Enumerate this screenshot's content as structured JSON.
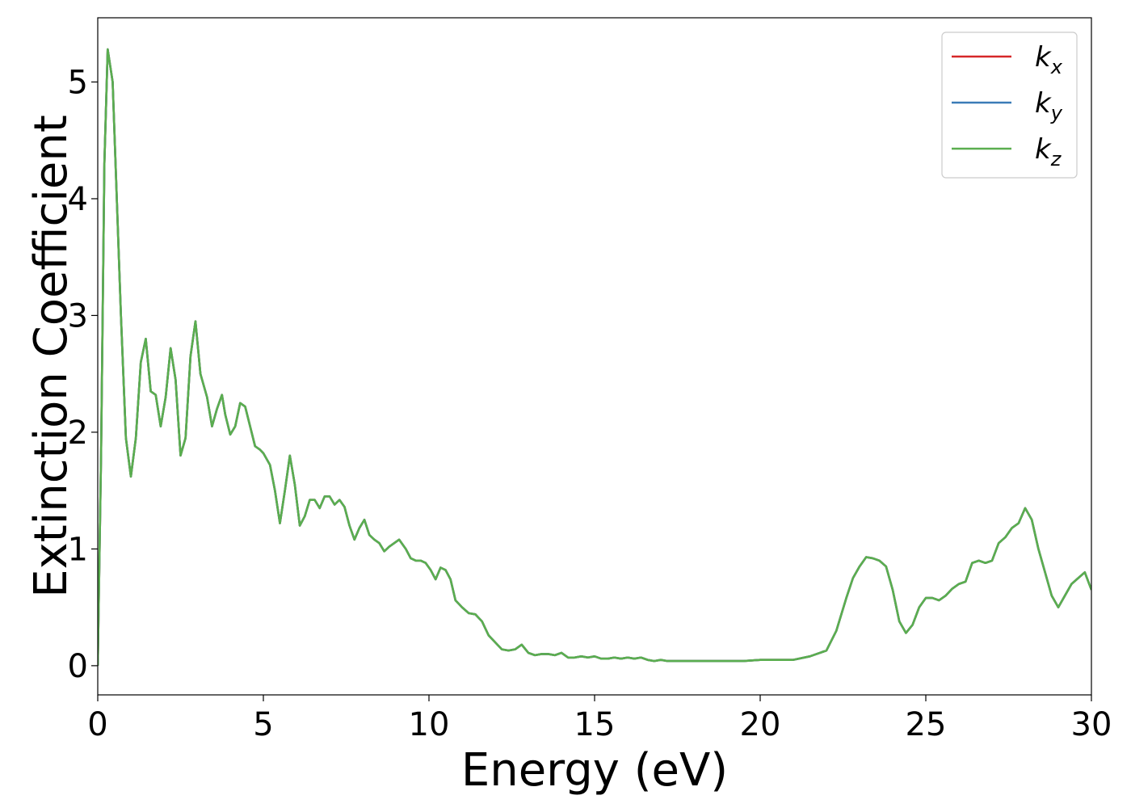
{
  "chart_data": {
    "type": "line",
    "title": "",
    "xlabel": "Energy (eV)",
    "ylabel": "Extinction Coefficient",
    "xlim": [
      0,
      30
    ],
    "ylim": [
      -0.25,
      5.55
    ],
    "xticks": [
      0,
      5,
      10,
      15,
      20,
      25,
      30
    ],
    "yticks": [
      0,
      1,
      2,
      3,
      4,
      5
    ],
    "xtick_labels": [
      "0",
      "5",
      "10",
      "15",
      "20",
      "25",
      "30"
    ],
    "ytick_labels": [
      "0",
      "1",
      "2",
      "3",
      "4",
      "5"
    ],
    "grid": false,
    "legend_position": "top-right",
    "series": [
      {
        "name": "k_x",
        "label_main": "k",
        "label_sub": "x",
        "color": "#d62728",
        "x": [
          0,
          0.1,
          0.2,
          0.3,
          0.45,
          0.55,
          0.7,
          0.85,
          1.0,
          1.15,
          1.3,
          1.45,
          1.6,
          1.75,
          1.9,
          2.05,
          2.2,
          2.35,
          2.5,
          2.65,
          2.8,
          2.95,
          3.1,
          3.3,
          3.45,
          3.6,
          3.75,
          3.85,
          4.0,
          4.15,
          4.3,
          4.45,
          4.6,
          4.75,
          4.9,
          5.0,
          5.2,
          5.35,
          5.5,
          5.65,
          5.8,
          5.95,
          6.1,
          6.25,
          6.4,
          6.55,
          6.7,
          6.85,
          7.0,
          7.15,
          7.3,
          7.45,
          7.6,
          7.75,
          7.9,
          8.05,
          8.2,
          8.35,
          8.5,
          8.65,
          8.8,
          8.95,
          9.1,
          9.3,
          9.45,
          9.6,
          9.75,
          9.9,
          10.05,
          10.2,
          10.35,
          10.5,
          10.65,
          10.8,
          11.0,
          11.2,
          11.4,
          11.6,
          11.8,
          12.0,
          12.2,
          12.4,
          12.6,
          12.8,
          13.0,
          13.2,
          13.4,
          13.6,
          13.8,
          14.0,
          14.2,
          14.4,
          14.6,
          14.8,
          15.0,
          15.2,
          15.4,
          15.6,
          15.8,
          16.0,
          16.2,
          16.4,
          16.6,
          16.8,
          17.0,
          17.2,
          17.4,
          17.6,
          17.8,
          18.0,
          18.5,
          19.0,
          19.5,
          20.0,
          20.5,
          21.0,
          21.5,
          22.0,
          22.3,
          22.6,
          22.8,
          23.0,
          23.2,
          23.4,
          23.6,
          23.8,
          24.0,
          24.2,
          24.4,
          24.6,
          24.8,
          25.0,
          25.2,
          25.4,
          25.6,
          25.8,
          26.0,
          26.2,
          26.4,
          26.6,
          26.8,
          27.0,
          27.2,
          27.4,
          27.6,
          27.8,
          28.0,
          28.2,
          28.4,
          28.6,
          28.8,
          29.0,
          29.2,
          29.4,
          29.6,
          29.8,
          30.0
        ],
        "y": [
          0,
          1.8,
          4.3,
          5.28,
          5.0,
          4.2,
          3.0,
          1.95,
          1.62,
          1.95,
          2.6,
          2.8,
          2.35,
          2.32,
          2.05,
          2.3,
          2.72,
          2.45,
          1.8,
          1.95,
          2.65,
          2.95,
          2.5,
          2.3,
          2.05,
          2.2,
          2.32,
          2.15,
          1.98,
          2.05,
          2.25,
          2.22,
          2.05,
          1.88,
          1.85,
          1.82,
          1.72,
          1.5,
          1.22,
          1.5,
          1.8,
          1.55,
          1.2,
          1.28,
          1.42,
          1.42,
          1.35,
          1.45,
          1.45,
          1.38,
          1.42,
          1.36,
          1.2,
          1.08,
          1.18,
          1.25,
          1.12,
          1.08,
          1.05,
          0.98,
          1.02,
          1.05,
          1.08,
          1.0,
          0.92,
          0.9,
          0.9,
          0.88,
          0.82,
          0.74,
          0.84,
          0.82,
          0.74,
          0.56,
          0.5,
          0.45,
          0.44,
          0.38,
          0.26,
          0.2,
          0.14,
          0.13,
          0.14,
          0.18,
          0.11,
          0.09,
          0.1,
          0.1,
          0.09,
          0.11,
          0.07,
          0.07,
          0.08,
          0.07,
          0.08,
          0.06,
          0.06,
          0.07,
          0.06,
          0.07,
          0.06,
          0.07,
          0.05,
          0.04,
          0.05,
          0.04,
          0.04,
          0.04,
          0.04,
          0.04,
          0.04,
          0.04,
          0.04,
          0.05,
          0.05,
          0.05,
          0.08,
          0.13,
          0.3,
          0.58,
          0.75,
          0.85,
          0.93,
          0.92,
          0.9,
          0.85,
          0.65,
          0.38,
          0.28,
          0.35,
          0.5,
          0.58,
          0.58,
          0.56,
          0.6,
          0.66,
          0.7,
          0.72,
          0.88,
          0.9,
          0.88,
          0.9,
          1.05,
          1.1,
          1.18,
          1.22,
          1.35,
          1.25,
          1.0,
          0.8,
          0.6,
          0.5,
          0.6,
          0.7,
          0.75,
          0.8,
          0.65
        ]
      },
      {
        "name": "k_y",
        "label_main": "k",
        "label_sub": "y",
        "color": "#3a7bb7",
        "x": [
          0,
          0.1,
          0.2,
          0.3,
          0.45,
          0.55,
          0.7,
          0.85,
          1.0,
          1.15,
          1.3,
          1.45,
          1.6,
          1.75,
          1.9,
          2.05,
          2.2,
          2.35,
          2.5,
          2.65,
          2.8,
          2.95,
          3.1,
          3.3,
          3.45,
          3.6,
          3.75,
          3.85,
          4.0,
          4.15,
          4.3,
          4.45,
          4.6,
          4.75,
          4.9,
          5.0,
          5.2,
          5.35,
          5.5,
          5.65,
          5.8,
          5.95,
          6.1,
          6.25,
          6.4,
          6.55,
          6.7,
          6.85,
          7.0,
          7.15,
          7.3,
          7.45,
          7.6,
          7.75,
          7.9,
          8.05,
          8.2,
          8.35,
          8.5,
          8.65,
          8.8,
          8.95,
          9.1,
          9.3,
          9.45,
          9.6,
          9.75,
          9.9,
          10.05,
          10.2,
          10.35,
          10.5,
          10.65,
          10.8,
          11.0,
          11.2,
          11.4,
          11.6,
          11.8,
          12.0,
          12.2,
          12.4,
          12.6,
          12.8,
          13.0,
          13.2,
          13.4,
          13.6,
          13.8,
          14.0,
          14.2,
          14.4,
          14.6,
          14.8,
          15.0,
          15.2,
          15.4,
          15.6,
          15.8,
          16.0,
          16.2,
          16.4,
          16.6,
          16.8,
          17.0,
          17.2,
          17.4,
          17.6,
          17.8,
          18.0,
          18.5,
          19.0,
          19.5,
          20.0,
          20.5,
          21.0,
          21.5,
          22.0,
          22.3,
          22.6,
          22.8,
          23.0,
          23.2,
          23.4,
          23.6,
          23.8,
          24.0,
          24.2,
          24.4,
          24.6,
          24.8,
          25.0,
          25.2,
          25.4,
          25.6,
          25.8,
          26.0,
          26.2,
          26.4,
          26.6,
          26.8,
          27.0,
          27.2,
          27.4,
          27.6,
          27.8,
          28.0,
          28.2,
          28.4,
          28.6,
          28.8,
          29.0,
          29.2,
          29.4,
          29.6,
          29.8,
          30.0
        ],
        "y": [
          0,
          1.8,
          4.3,
          5.28,
          5.0,
          4.2,
          3.0,
          1.95,
          1.62,
          1.95,
          2.6,
          2.8,
          2.35,
          2.32,
          2.05,
          2.3,
          2.72,
          2.45,
          1.8,
          1.95,
          2.65,
          2.95,
          2.5,
          2.3,
          2.05,
          2.2,
          2.32,
          2.15,
          1.98,
          2.05,
          2.25,
          2.22,
          2.05,
          1.88,
          1.85,
          1.82,
          1.72,
          1.5,
          1.22,
          1.5,
          1.8,
          1.55,
          1.2,
          1.28,
          1.42,
          1.42,
          1.35,
          1.45,
          1.45,
          1.38,
          1.42,
          1.36,
          1.2,
          1.08,
          1.18,
          1.25,
          1.12,
          1.08,
          1.05,
          0.98,
          1.02,
          1.05,
          1.08,
          1.0,
          0.92,
          0.9,
          0.9,
          0.88,
          0.82,
          0.74,
          0.84,
          0.82,
          0.74,
          0.56,
          0.5,
          0.45,
          0.44,
          0.38,
          0.26,
          0.2,
          0.14,
          0.13,
          0.14,
          0.18,
          0.11,
          0.09,
          0.1,
          0.1,
          0.09,
          0.11,
          0.07,
          0.07,
          0.08,
          0.07,
          0.08,
          0.06,
          0.06,
          0.07,
          0.06,
          0.07,
          0.06,
          0.07,
          0.05,
          0.04,
          0.05,
          0.04,
          0.04,
          0.04,
          0.04,
          0.04,
          0.04,
          0.04,
          0.04,
          0.05,
          0.05,
          0.05,
          0.08,
          0.13,
          0.3,
          0.58,
          0.75,
          0.85,
          0.93,
          0.92,
          0.9,
          0.85,
          0.65,
          0.38,
          0.28,
          0.35,
          0.5,
          0.58,
          0.58,
          0.56,
          0.6,
          0.66,
          0.7,
          0.72,
          0.88,
          0.9,
          0.88,
          0.9,
          1.05,
          1.1,
          1.18,
          1.22,
          1.35,
          1.25,
          1.0,
          0.8,
          0.6,
          0.5,
          0.6,
          0.7,
          0.75,
          0.8,
          0.65
        ]
      },
      {
        "name": "k_z",
        "label_main": "k",
        "label_sub": "z",
        "color": "#5aae4f",
        "x": [
          0,
          0.1,
          0.2,
          0.3,
          0.45,
          0.55,
          0.7,
          0.85,
          1.0,
          1.15,
          1.3,
          1.45,
          1.6,
          1.75,
          1.9,
          2.05,
          2.2,
          2.35,
          2.5,
          2.65,
          2.8,
          2.95,
          3.1,
          3.3,
          3.45,
          3.6,
          3.75,
          3.85,
          4.0,
          4.15,
          4.3,
          4.45,
          4.6,
          4.75,
          4.9,
          5.0,
          5.2,
          5.35,
          5.5,
          5.65,
          5.8,
          5.95,
          6.1,
          6.25,
          6.4,
          6.55,
          6.7,
          6.85,
          7.0,
          7.15,
          7.3,
          7.45,
          7.6,
          7.75,
          7.9,
          8.05,
          8.2,
          8.35,
          8.5,
          8.65,
          8.8,
          8.95,
          9.1,
          9.3,
          9.45,
          9.6,
          9.75,
          9.9,
          10.05,
          10.2,
          10.35,
          10.5,
          10.65,
          10.8,
          11.0,
          11.2,
          11.4,
          11.6,
          11.8,
          12.0,
          12.2,
          12.4,
          12.6,
          12.8,
          13.0,
          13.2,
          13.4,
          13.6,
          13.8,
          14.0,
          14.2,
          14.4,
          14.6,
          14.8,
          15.0,
          15.2,
          15.4,
          15.6,
          15.8,
          16.0,
          16.2,
          16.4,
          16.6,
          16.8,
          17.0,
          17.2,
          17.4,
          17.6,
          17.8,
          18.0,
          18.5,
          19.0,
          19.5,
          20.0,
          20.5,
          21.0,
          21.5,
          22.0,
          22.3,
          22.6,
          22.8,
          23.0,
          23.2,
          23.4,
          23.6,
          23.8,
          24.0,
          24.2,
          24.4,
          24.6,
          24.8,
          25.0,
          25.2,
          25.4,
          25.6,
          25.8,
          26.0,
          26.2,
          26.4,
          26.6,
          26.8,
          27.0,
          27.2,
          27.4,
          27.6,
          27.8,
          28.0,
          28.2,
          28.4,
          28.6,
          28.8,
          29.0,
          29.2,
          29.4,
          29.6,
          29.8,
          30.0
        ],
        "y": [
          0,
          1.8,
          4.3,
          5.28,
          5.0,
          4.2,
          3.0,
          1.95,
          1.62,
          1.95,
          2.6,
          2.8,
          2.35,
          2.32,
          2.05,
          2.3,
          2.72,
          2.45,
          1.8,
          1.95,
          2.65,
          2.95,
          2.5,
          2.3,
          2.05,
          2.2,
          2.32,
          2.15,
          1.98,
          2.05,
          2.25,
          2.22,
          2.05,
          1.88,
          1.85,
          1.82,
          1.72,
          1.5,
          1.22,
          1.5,
          1.8,
          1.55,
          1.2,
          1.28,
          1.42,
          1.42,
          1.35,
          1.45,
          1.45,
          1.38,
          1.42,
          1.36,
          1.2,
          1.08,
          1.18,
          1.25,
          1.12,
          1.08,
          1.05,
          0.98,
          1.02,
          1.05,
          1.08,
          1.0,
          0.92,
          0.9,
          0.9,
          0.88,
          0.82,
          0.74,
          0.84,
          0.82,
          0.74,
          0.56,
          0.5,
          0.45,
          0.44,
          0.38,
          0.26,
          0.2,
          0.14,
          0.13,
          0.14,
          0.18,
          0.11,
          0.09,
          0.1,
          0.1,
          0.09,
          0.11,
          0.07,
          0.07,
          0.08,
          0.07,
          0.08,
          0.06,
          0.06,
          0.07,
          0.06,
          0.07,
          0.06,
          0.07,
          0.05,
          0.04,
          0.05,
          0.04,
          0.04,
          0.04,
          0.04,
          0.04,
          0.04,
          0.04,
          0.04,
          0.05,
          0.05,
          0.05,
          0.08,
          0.13,
          0.3,
          0.58,
          0.75,
          0.85,
          0.93,
          0.92,
          0.9,
          0.85,
          0.65,
          0.38,
          0.28,
          0.35,
          0.5,
          0.58,
          0.58,
          0.56,
          0.6,
          0.66,
          0.7,
          0.72,
          0.88,
          0.9,
          0.88,
          0.9,
          1.05,
          1.1,
          1.18,
          1.22,
          1.35,
          1.25,
          1.0,
          0.8,
          0.6,
          0.5,
          0.6,
          0.7,
          0.75,
          0.8,
          0.65
        ]
      }
    ]
  }
}
